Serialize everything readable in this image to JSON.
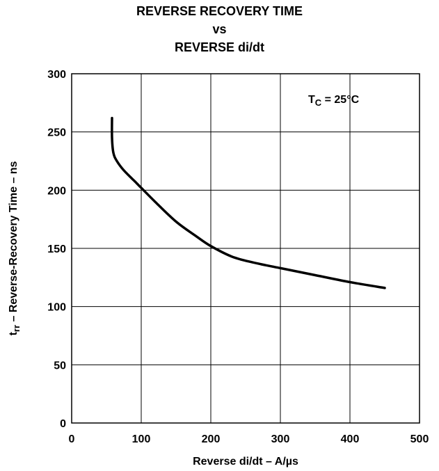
{
  "chart_data": {
    "type": "line",
    "title": [
      "REVERSE RECOVERY TIME",
      "vs",
      "REVERSE di/dt"
    ],
    "xlabel": "Reverse di/dt – A/µs",
    "ylabel": {
      "symbol": "t",
      "subscript": "rr",
      "text": " – Reverse-Recovery Time – ns"
    },
    "annotation": {
      "symbol": "T",
      "subscript": "C",
      "text": " = 25°C"
    },
    "xlim": [
      0,
      500
    ],
    "ylim": [
      0,
      300
    ],
    "xticks": [
      "0",
      "100",
      "200",
      "300",
      "400",
      "500"
    ],
    "yticks": [
      "0",
      "50",
      "100",
      "150",
      "200",
      "250",
      "300"
    ],
    "grid": true,
    "series": [
      {
        "x": [
          58,
          58,
          60,
          65,
          75,
          90,
          100,
          120,
          150,
          180,
          200,
          230,
          260,
          300,
          350,
          400,
          450
        ],
        "y": [
          262,
          245,
          232,
          225,
          217,
          208,
          202,
          190,
          173,
          160,
          152,
          143,
          138,
          133,
          127,
          121,
          116
        ]
      }
    ]
  }
}
